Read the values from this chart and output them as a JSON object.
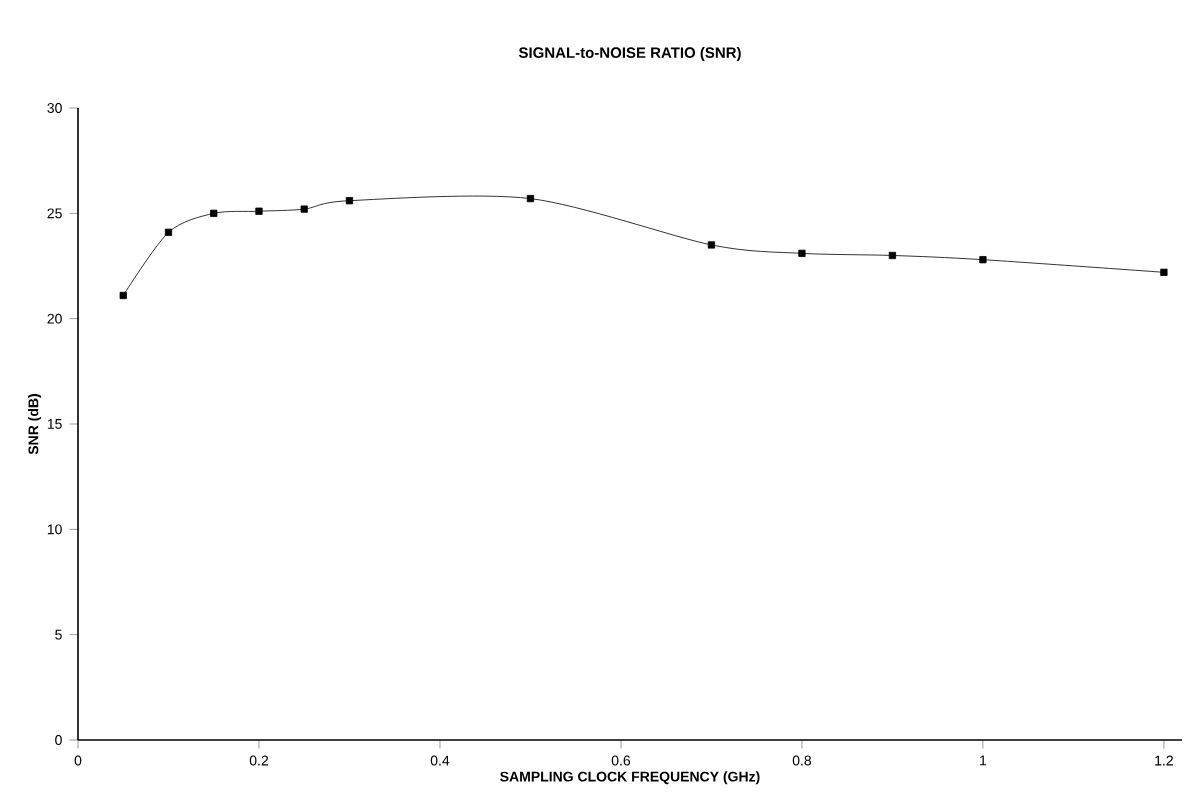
{
  "chart_data": {
    "type": "line",
    "title": "SIGNAL-to-NOISE RATIO (SNR)",
    "xlabel": "SAMPLING CLOCK FREQUENCY (GHz)",
    "ylabel": "SNR (dB)",
    "x": [
      0.05,
      0.1,
      0.15,
      0.2,
      0.25,
      0.3,
      0.5,
      0.7,
      0.8,
      0.9,
      1.0,
      1.2
    ],
    "series": [
      {
        "color": "#000000",
        "values": [
          21.1,
          24.1,
          25.0,
          25.1,
          25.2,
          25.6,
          25.7,
          23.5,
          23.1,
          23.0,
          22.8,
          22.2
        ]
      }
    ],
    "xlim": [
      0,
      1.22
    ],
    "ylim": [
      0,
      30
    ],
    "xticks": [
      0,
      0.2,
      0.4,
      0.6,
      0.8,
      1,
      1.2
    ],
    "yticks": [
      0,
      5,
      10,
      15,
      20,
      25,
      30
    ],
    "marker": "square",
    "line_style": "solid"
  }
}
